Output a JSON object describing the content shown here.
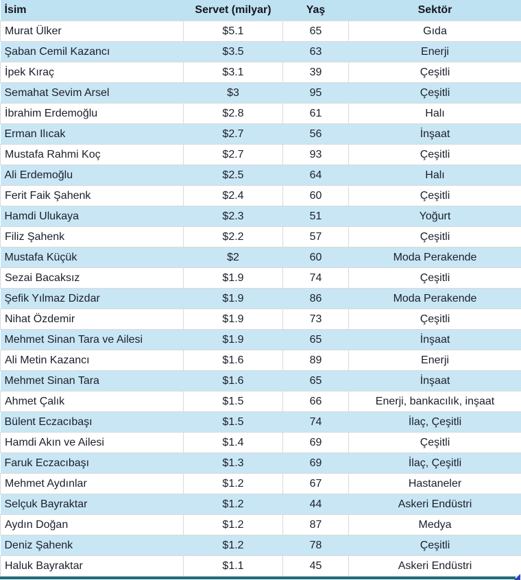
{
  "table": {
    "columns": [
      {
        "key": "name",
        "label": "İsim",
        "align": "left"
      },
      {
        "key": "wealth",
        "label": "Servet (milyar)",
        "align": "center"
      },
      {
        "key": "age",
        "label": "Yaş",
        "align": "center"
      },
      {
        "key": "sector",
        "label": "Sektör",
        "align": "center"
      }
    ],
    "rows": [
      {
        "name": "Murat Ülker",
        "wealth": "$5.1",
        "age": "65",
        "sector": "Gıda"
      },
      {
        "name": "Şaban Cemil Kazancı",
        "wealth": "$3.5",
        "age": "63",
        "sector": "Enerji"
      },
      {
        "name": "İpek Kıraç",
        "wealth": "$3.1",
        "age": "39",
        "sector": "Çeşitli"
      },
      {
        "name": "Semahat Sevim Arsel",
        "wealth": "$3",
        "age": "95",
        "sector": "Çeşitli"
      },
      {
        "name": "İbrahim Erdemoğlu",
        "wealth": "$2.8",
        "age": "61",
        "sector": "Halı"
      },
      {
        "name": "Erman Ilıcak",
        "wealth": "$2.7",
        "age": "56",
        "sector": "İnşaat"
      },
      {
        "name": "Mustafa Rahmi Koç",
        "wealth": "$2.7",
        "age": "93",
        "sector": "Çeşitli"
      },
      {
        "name": "Ali Erdemoğlu",
        "wealth": "$2.5",
        "age": "64",
        "sector": "Halı"
      },
      {
        "name": "Ferit Faik Şahenk",
        "wealth": "$2.4",
        "age": "60",
        "sector": "Çeşitli"
      },
      {
        "name": "Hamdi Ulukaya",
        "wealth": "$2.3",
        "age": "51",
        "sector": "Yoğurt"
      },
      {
        "name": "Filiz Şahenk",
        "wealth": "$2.2",
        "age": "57",
        "sector": "Çeşitli"
      },
      {
        "name": "Mustafa Küçük",
        "wealth": "$2",
        "age": "60",
        "sector": "Moda Perakende"
      },
      {
        "name": "Sezai Bacaksız",
        "wealth": "$1.9",
        "age": "74",
        "sector": "Çeşitli"
      },
      {
        "name": "Şefik Yılmaz Dizdar",
        "wealth": "$1.9",
        "age": "86",
        "sector": "Moda Perakende"
      },
      {
        "name": "Nihat Özdemir",
        "wealth": "$1.9",
        "age": "73",
        "sector": "Çeşitli"
      },
      {
        "name": "Mehmet Sinan Tara ve Ailesi",
        "wealth": "$1.9",
        "age": "65",
        "sector": "İnşaat"
      },
      {
        "name": "Ali Metin Kazancı",
        "wealth": "$1.6",
        "age": "89",
        "sector": "Enerji"
      },
      {
        "name": "Mehmet Sinan Tara",
        "wealth": "$1.6",
        "age": "65",
        "sector": "İnşaat"
      },
      {
        "name": "Ahmet Çalık",
        "wealth": "$1.5",
        "age": "66",
        "sector": "Enerji, bankacılık, inşaat"
      },
      {
        "name": "Bülent Eczacıbaşı",
        "wealth": "$1.5",
        "age": "74",
        "sector": "İlaç, Çeşitli"
      },
      {
        "name": "Hamdi Akın ve Ailesi",
        "wealth": "$1.4",
        "age": "69",
        "sector": "Çeşitli"
      },
      {
        "name": "Faruk Eczacıbaşı",
        "wealth": "$1.3",
        "age": "69",
        "sector": "İlaç, Çeşitli"
      },
      {
        "name": "Mehmet Aydınlar",
        "wealth": "$1.2",
        "age": "67",
        "sector": "Hastaneler"
      },
      {
        "name": "Selçuk Bayraktar",
        "wealth": "$1.2",
        "age": "44",
        "sector": "Askeri Endüstri"
      },
      {
        "name": "Aydın Doğan",
        "wealth": "$1.2",
        "age": "87",
        "sector": "Medya"
      },
      {
        "name": "Deniz Şahenk",
        "wealth": "$1.2",
        "age": "78",
        "sector": "Çeşitli"
      },
      {
        "name": "Haluk Bayraktar",
        "wealth": "$1.1",
        "age": "45",
        "sector": "Askeri Endüstri"
      }
    ]
  },
  "colors": {
    "header_bg": "#bfe2f2",
    "band_bg": "#c9e6f5",
    "gridline": "#d9d9d9",
    "text": "#1b1f2a",
    "selection_border": "#1e6b7d",
    "fill_handle": "#2e45b5"
  }
}
